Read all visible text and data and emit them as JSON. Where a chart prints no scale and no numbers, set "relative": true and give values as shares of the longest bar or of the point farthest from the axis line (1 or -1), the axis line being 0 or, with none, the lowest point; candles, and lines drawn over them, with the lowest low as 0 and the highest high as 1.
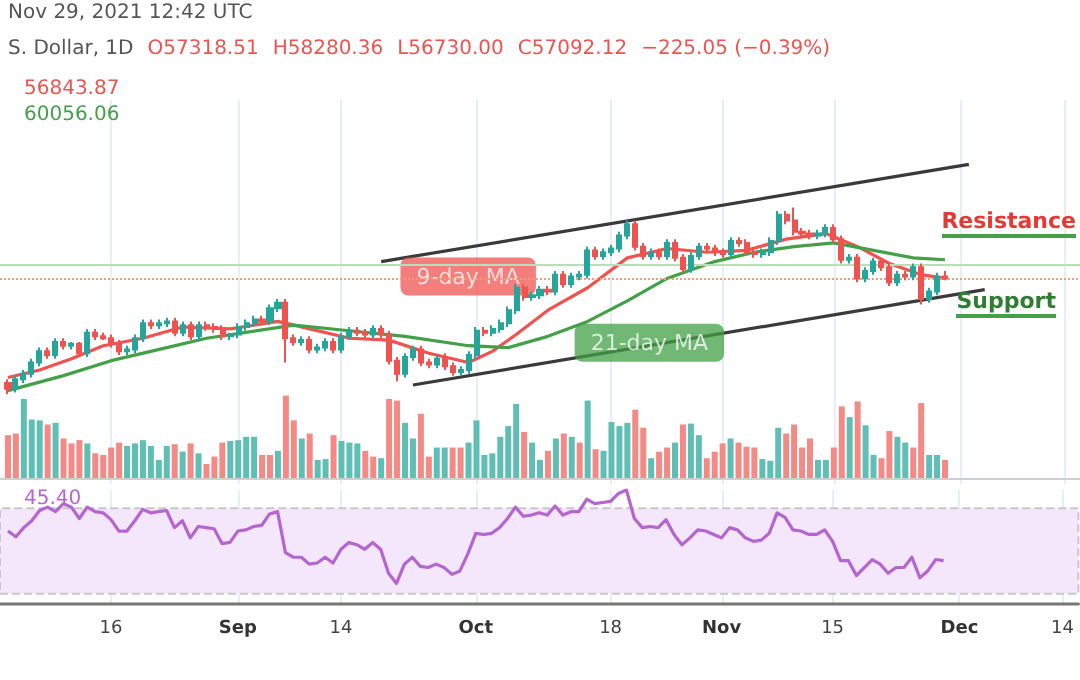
{
  "chart_data": [
    {
      "type": "candlestick",
      "relative": true,
      "tick_labels": false,
      "grid": "x",
      "xlim": [
        "--08-02",
        "--12-16"
      ],
      "xticks": [
        {
          "value": "--08-16",
          "label": "16"
        },
        {
          "value": "--09-01",
          "label": "Sep"
        },
        {
          "value": "--09-14",
          "label": "14"
        },
        {
          "value": "--10-01",
          "label": "Oct"
        },
        {
          "value": "--10-18",
          "label": "18"
        },
        {
          "value": "--11-01",
          "label": "Nov"
        },
        {
          "value": "--11-15",
          "label": "15"
        },
        {
          "value": "--12-01",
          "label": "Dec"
        },
        {
          "value": "--12-14",
          "label": "14"
        }
      ],
      "x": [
        "--08-03",
        "--08-04",
        "--08-05",
        "--08-06",
        "--08-07",
        "--08-08",
        "--08-09",
        "--08-10",
        "--08-11",
        "--08-12",
        "--08-13",
        "--08-14",
        "--08-15",
        "--08-16",
        "--08-17",
        "--08-18",
        "--08-19",
        "--08-20",
        "--08-21",
        "--08-22",
        "--08-23",
        "--08-24",
        "--08-25",
        "--08-26",
        "--08-27",
        "--08-28",
        "--08-29",
        "--08-30",
        "--08-31",
        "--09-01",
        "--09-02",
        "--09-03",
        "--09-04",
        "--09-05",
        "--09-06",
        "--09-07",
        "--09-08",
        "--09-09",
        "--09-10",
        "--09-11",
        "--09-12",
        "--09-13",
        "--09-14",
        "--09-15",
        "--09-16",
        "--09-17",
        "--09-18",
        "--09-19",
        "--09-20",
        "--09-21",
        "--09-22",
        "--09-23",
        "--09-24",
        "--09-25",
        "--09-26",
        "--09-27",
        "--09-28",
        "--09-29",
        "--09-30",
        "--10-01",
        "--10-02",
        "--10-03",
        "--10-04",
        "--10-05",
        "--10-06",
        "--10-07",
        "--10-08",
        "--10-09",
        "--10-10",
        "--10-11",
        "--10-12",
        "--10-13",
        "--10-14",
        "--10-15",
        "--10-16",
        "--10-17",
        "--10-18",
        "--10-19",
        "--10-20",
        "--10-21",
        "--10-22",
        "--10-23",
        "--10-24",
        "--10-25",
        "--10-26",
        "--10-27",
        "--10-28",
        "--10-29",
        "--10-30",
        "--10-31",
        "--11-01",
        "--11-02",
        "--11-03",
        "--11-04",
        "--11-05",
        "--11-06",
        "--11-07",
        "--11-08",
        "--11-09",
        "--11-10",
        "--11-11",
        "--11-12",
        "--11-13",
        "--11-14",
        "--11-15",
        "--11-16",
        "--11-17",
        "--11-18",
        "--11-19",
        "--11-20",
        "--11-21",
        "--11-22",
        "--11-23",
        "--11-24",
        "--11-25",
        "--11-26",
        "--11-27",
        "--11-28",
        "--11-29"
      ],
      "ohlc": [
        [
          0.06,
          0.08,
          0,
          0.03
        ],
        [
          0.03,
          0.1,
          0.01,
          0.08
        ],
        [
          0.08,
          0.13,
          0.06,
          0.11
        ],
        [
          0.11,
          0.19,
          0.09,
          0.17
        ],
        [
          0.17,
          0.25,
          0.15,
          0.23
        ],
        [
          0.23,
          0.25,
          0.19,
          0.21
        ],
        [
          0.21,
          0.3,
          0.19,
          0.28
        ],
        [
          0.28,
          0.3,
          0.24,
          0.26
        ],
        [
          0.26,
          0.28,
          0.24,
          0.27
        ],
        [
          0.27,
          0.28,
          0.2,
          0.22
        ],
        [
          0.22,
          0.35,
          0.2,
          0.33
        ],
        [
          0.33,
          0.35,
          0.29,
          0.31
        ],
        [
          0.31,
          0.33,
          0.29,
          0.3
        ],
        [
          0.3,
          0.32,
          0.25,
          0.27
        ],
        [
          0.27,
          0.29,
          0.21,
          0.23
        ],
        [
          0.23,
          0.26,
          0.21,
          0.24
        ],
        [
          0.24,
          0.32,
          0.22,
          0.3
        ],
        [
          0.3,
          0.4,
          0.28,
          0.38
        ],
        [
          0.38,
          0.4,
          0.35,
          0.37
        ],
        [
          0.37,
          0.4,
          0.35,
          0.38
        ],
        [
          0.38,
          0.41,
          0.36,
          0.39
        ],
        [
          0.39,
          0.41,
          0.31,
          0.33
        ],
        [
          0.33,
          0.39,
          0.31,
          0.37
        ],
        [
          0.37,
          0.39,
          0.29,
          0.31
        ],
        [
          0.31,
          0.39,
          0.29,
          0.37
        ],
        [
          0.37,
          0.39,
          0.34,
          0.36
        ],
        [
          0.36,
          0.38,
          0.33,
          0.35
        ],
        [
          0.35,
          0.37,
          0.29,
          0.31
        ],
        [
          0.31,
          0.33,
          0.29,
          0.32
        ],
        [
          0.32,
          0.38,
          0.3,
          0.36
        ],
        [
          0.36,
          0.4,
          0.34,
          0.38
        ],
        [
          0.38,
          0.42,
          0.36,
          0.4
        ],
        [
          0.4,
          0.42,
          0.37,
          0.39
        ],
        [
          0.39,
          0.48,
          0.37,
          0.46
        ],
        [
          0.46,
          0.51,
          0.44,
          0.49
        ],
        [
          0.49,
          0.51,
          0.17,
          0.3
        ],
        [
          0.3,
          0.32,
          0.26,
          0.28
        ],
        [
          0.28,
          0.31,
          0.26,
          0.29
        ],
        [
          0.29,
          0.31,
          0.22,
          0.24
        ],
        [
          0.24,
          0.27,
          0.22,
          0.25
        ],
        [
          0.25,
          0.3,
          0.23,
          0.28
        ],
        [
          0.28,
          0.3,
          0.22,
          0.24
        ],
        [
          0.24,
          0.33,
          0.22,
          0.31
        ],
        [
          0.31,
          0.36,
          0.29,
          0.34
        ],
        [
          0.34,
          0.36,
          0.31,
          0.33
        ],
        [
          0.33,
          0.35,
          0.3,
          0.32
        ],
        [
          0.32,
          0.37,
          0.3,
          0.35
        ],
        [
          0.35,
          0.37,
          0.3,
          0.32
        ],
        [
          0.32,
          0.34,
          0.16,
          0.18
        ],
        [
          0.18,
          0.2,
          0.07,
          0.11
        ],
        [
          0.11,
          0.22,
          0.09,
          0.2
        ],
        [
          0.2,
          0.26,
          0.18,
          0.24
        ],
        [
          0.24,
          0.26,
          0.15,
          0.17
        ],
        [
          0.17,
          0.19,
          0.14,
          0.16
        ],
        [
          0.16,
          0.21,
          0.14,
          0.19
        ],
        [
          0.19,
          0.22,
          0.13,
          0.15
        ],
        [
          0.15,
          0.17,
          0.1,
          0.12
        ],
        [
          0.12,
          0.15,
          0.1,
          0.13
        ],
        [
          0.13,
          0.23,
          0.11,
          0.21
        ],
        [
          0.21,
          0.36,
          0.19,
          0.34
        ],
        [
          0.34,
          0.36,
          0.31,
          0.33
        ],
        [
          0.33,
          0.37,
          0.31,
          0.35
        ],
        [
          0.35,
          0.4,
          0.33,
          0.38
        ],
        [
          0.38,
          0.47,
          0.36,
          0.45
        ],
        [
          0.45,
          0.59,
          0.43,
          0.57
        ],
        [
          0.57,
          0.59,
          0.5,
          0.52
        ],
        [
          0.52,
          0.55,
          0.5,
          0.53
        ],
        [
          0.53,
          0.58,
          0.51,
          0.56
        ],
        [
          0.56,
          0.58,
          0.53,
          0.55
        ],
        [
          0.55,
          0.66,
          0.53,
          0.64
        ],
        [
          0.64,
          0.66,
          0.57,
          0.59
        ],
        [
          0.59,
          0.65,
          0.57,
          0.63
        ],
        [
          0.63,
          0.66,
          0.61,
          0.64
        ],
        [
          0.64,
          0.79,
          0.62,
          0.77
        ],
        [
          0.77,
          0.79,
          0.72,
          0.74
        ],
        [
          0.74,
          0.78,
          0.72,
          0.76
        ],
        [
          0.76,
          0.8,
          0.74,
          0.78
        ],
        [
          0.78,
          0.87,
          0.76,
          0.85
        ],
        [
          0.85,
          0.93,
          0.83,
          0.91
        ],
        [
          0.91,
          0.93,
          0.77,
          0.79
        ],
        [
          0.79,
          0.81,
          0.72,
          0.74
        ],
        [
          0.74,
          0.78,
          0.72,
          0.76
        ],
        [
          0.76,
          0.78,
          0.72,
          0.74
        ],
        [
          0.74,
          0.83,
          0.72,
          0.81
        ],
        [
          0.81,
          0.83,
          0.71,
          0.73
        ],
        [
          0.73,
          0.75,
          0.65,
          0.67
        ],
        [
          0.67,
          0.76,
          0.65,
          0.74
        ],
        [
          0.74,
          0.81,
          0.72,
          0.79
        ],
        [
          0.79,
          0.81,
          0.76,
          0.78
        ],
        [
          0.78,
          0.8,
          0.74,
          0.76
        ],
        [
          0.76,
          0.78,
          0.73,
          0.75
        ],
        [
          0.75,
          0.84,
          0.73,
          0.82
        ],
        [
          0.82,
          0.84,
          0.79,
          0.81
        ],
        [
          0.81,
          0.83,
          0.74,
          0.76
        ],
        [
          0.76,
          0.78,
          0.73,
          0.75
        ],
        [
          0.75,
          0.78,
          0.73,
          0.76
        ],
        [
          0.76,
          0.84,
          0.74,
          0.82
        ],
        [
          0.82,
          0.98,
          0.8,
          0.96
        ],
        [
          0.96,
          0.98,
          0.91,
          0.93
        ],
        [
          0.93,
          1,
          0.85,
          0.87
        ],
        [
          0.87,
          0.89,
          0.84,
          0.86
        ],
        [
          0.86,
          0.88,
          0.83,
          0.85
        ],
        [
          0.85,
          0.88,
          0.83,
          0.86
        ],
        [
          0.86,
          0.91,
          0.84,
          0.89
        ],
        [
          0.89,
          0.91,
          0.81,
          0.83
        ],
        [
          0.83,
          0.85,
          0.7,
          0.72
        ],
        [
          0.72,
          0.75,
          0.7,
          0.73
        ],
        [
          0.73,
          0.75,
          0.6,
          0.62
        ],
        [
          0.62,
          0.68,
          0.6,
          0.66
        ],
        [
          0.66,
          0.73,
          0.64,
          0.71
        ],
        [
          0.71,
          0.73,
          0.66,
          0.68
        ],
        [
          0.68,
          0.7,
          0.58,
          0.6
        ],
        [
          0.6,
          0.66,
          0.58,
          0.64
        ],
        [
          0.64,
          0.66,
          0.61,
          0.63
        ],
        [
          0.63,
          0.7,
          0.61,
          0.68
        ],
        [
          0.68,
          0.7,
          0.48,
          0.51
        ],
        [
          0.51,
          0.57,
          0.49,
          0.55
        ],
        [
          0.55,
          0.65,
          0.53,
          0.63
        ],
        [
          0.63,
          0.66,
          0.61,
          0.62
        ]
      ],
      "series": [
        {
          "type": "line",
          "name": "9-day MA",
          "color": "#f0534f",
          "x": [
            "--08-03",
            "--08-07",
            "--08-11",
            "--08-15",
            "--08-20",
            "--08-25",
            "--08-31",
            "--09-06",
            "--09-10",
            "--09-15",
            "--09-20",
            "--09-25",
            "--09-30",
            "--10-03",
            "--10-06",
            "--10-10",
            "--10-15",
            "--10-20",
            "--10-25",
            "--10-30",
            "--11-04",
            "--11-09",
            "--11-14",
            "--11-18",
            "--11-22",
            "--11-26",
            "--11-29"
          ],
          "values": [
            0.09,
            0.13,
            0.19,
            0.26,
            0.3,
            0.36,
            0.35,
            0.39,
            0.35,
            0.3,
            0.29,
            0.22,
            0.17,
            0.23,
            0.32,
            0.45,
            0.57,
            0.73,
            0.78,
            0.76,
            0.77,
            0.83,
            0.86,
            0.79,
            0.7,
            0.64,
            0.62
          ]
        },
        {
          "type": "line",
          "name": "21-day MA",
          "color": "#43a047",
          "x": [
            "--08-03",
            "--08-10",
            "--08-16",
            "--08-23",
            "--08-28",
            "--09-08",
            "--09-15",
            "--09-22",
            "--09-30",
            "--10-05",
            "--10-10",
            "--10-15",
            "--10-20",
            "--10-25",
            "--10-31",
            "--11-05",
            "--11-10",
            "--11-15",
            "--11-20",
            "--11-25",
            "--11-29"
          ],
          "values": [
            0.02,
            0.1,
            0.18,
            0.25,
            0.3,
            0.37,
            0.34,
            0.31,
            0.26,
            0.25,
            0.31,
            0.39,
            0.5,
            0.62,
            0.71,
            0.76,
            0.79,
            0.81,
            0.77,
            0.73,
            0.72
          ]
        },
        {
          "type": "line",
          "color": "#3a3a3a",
          "x": [
            "--09-19",
            "--12-02"
          ],
          "values": [
            0.71,
            1.23
          ]
        },
        {
          "type": "line",
          "color": "#3a3a3a",
          "x": [
            "--09-23",
            "--12-04"
          ],
          "values": [
            0.05,
            0.56
          ]
        }
      ],
      "ref_lines": [
        {
          "axis": "y",
          "value": 0.69,
          "color": "#b9dfb9",
          "line_style": "solid"
        },
        {
          "axis": "y",
          "value": 0.62,
          "color": "#f0a070",
          "line_style": "dotted"
        }
      ],
      "annotations": [
        "Nov 29, 2021 12:42 UTC",
        "S. Dollar, 1D",
        "O57318.51",
        "H58280.36",
        "L56730.00",
        "C57092.12",
        "−225.05 (−0.39%)",
        "56843.87",
        "60056.06",
        "Resistance",
        "Support"
      ]
    },
    {
      "type": "bar",
      "relative": true,
      "tick_labels": false,
      "xlim": [
        "--08-02",
        "--12-16"
      ],
      "x": [
        "--08-03",
        "--08-04",
        "--08-05",
        "--08-06",
        "--08-07",
        "--08-08",
        "--08-09",
        "--08-10",
        "--08-11",
        "--08-12",
        "--08-13",
        "--08-14",
        "--08-15",
        "--08-16",
        "--08-17",
        "--08-18",
        "--08-19",
        "--08-20",
        "--08-21",
        "--08-22",
        "--08-23",
        "--08-24",
        "--08-25",
        "--08-26",
        "--08-27",
        "--08-28",
        "--08-29",
        "--08-30",
        "--08-31",
        "--09-01",
        "--09-02",
        "--09-03",
        "--09-04",
        "--09-05",
        "--09-06",
        "--09-07",
        "--09-08",
        "--09-09",
        "--09-10",
        "--09-11",
        "--09-12",
        "--09-13",
        "--09-14",
        "--09-15",
        "--09-16",
        "--09-17",
        "--09-18",
        "--09-19",
        "--09-20",
        "--09-21",
        "--09-22",
        "--09-23",
        "--09-24",
        "--09-25",
        "--09-26",
        "--09-27",
        "--09-28",
        "--09-29",
        "--09-30",
        "--10-01",
        "--10-02",
        "--10-03",
        "--10-04",
        "--10-05",
        "--10-06",
        "--10-07",
        "--10-08",
        "--10-09",
        "--10-10",
        "--10-11",
        "--10-12",
        "--10-13",
        "--10-14",
        "--10-15",
        "--10-16",
        "--10-17",
        "--10-18",
        "--10-19",
        "--10-20",
        "--10-21",
        "--10-22",
        "--10-23",
        "--10-24",
        "--10-25",
        "--10-26",
        "--10-27",
        "--10-28",
        "--10-29",
        "--10-30",
        "--10-31",
        "--11-01",
        "--11-02",
        "--11-03",
        "--11-04",
        "--11-05",
        "--11-06",
        "--11-07",
        "--11-08",
        "--11-09",
        "--11-10",
        "--11-11",
        "--11-12",
        "--11-13",
        "--11-14",
        "--11-15",
        "--11-16",
        "--11-17",
        "--11-18",
        "--11-19",
        "--11-20",
        "--11-21",
        "--11-22",
        "--11-23",
        "--11-24",
        "--11-25",
        "--11-26",
        "--11-27",
        "--11-28",
        "--11-29"
      ],
      "values": [
        0.52,
        0.54,
        0.96,
        0.71,
        0.7,
        0.65,
        0.67,
        0.48,
        0.42,
        0.46,
        0.42,
        0.3,
        0.28,
        0.37,
        0.43,
        0.39,
        0.42,
        0.46,
        0.39,
        0.22,
        0.39,
        0.41,
        0.32,
        0.42,
        0.3,
        0.17,
        0.26,
        0.43,
        0.45,
        0.46,
        0.5,
        0.5,
        0.28,
        0.28,
        0.33,
        1,
        0.7,
        0.48,
        0.54,
        0.22,
        0.23,
        0.52,
        0.45,
        0.43,
        0.42,
        0.33,
        0.26,
        0.24,
        0.96,
        0.94,
        0.67,
        0.48,
        0.78,
        0.26,
        0.37,
        0.37,
        0.37,
        0.37,
        0.43,
        0.7,
        0.28,
        0.3,
        0.5,
        0.63,
        0.9,
        0.56,
        0.43,
        0.22,
        0.33,
        0.48,
        0.54,
        0.5,
        0.43,
        0.94,
        0.35,
        0.33,
        0.68,
        0.63,
        0.67,
        0.83,
        0.61,
        0.24,
        0.32,
        0.37,
        0.43,
        0.65,
        0.66,
        0.52,
        0.24,
        0.32,
        0.42,
        0.48,
        0.43,
        0.38,
        0.37,
        0.23,
        0.21,
        0.61,
        0.54,
        0.65,
        0.37,
        0.48,
        0.22,
        0.22,
        0.37,
        0.87,
        0.74,
        0.93,
        0.64,
        0.28,
        0.24,
        0.57,
        0.5,
        0.43,
        0.37,
        0.91,
        0.28,
        0.28,
        0.22
      ],
      "colors": [
        "#f38a86",
        "#f38a86",
        "#5fbfb4",
        "#5fbfb4",
        "#5fbfb4",
        "#f38a86",
        "#5fbfb4",
        "#f38a86",
        "#f38a86",
        "#f38a86",
        "#5fbfb4",
        "#f38a86",
        "#f38a86",
        "#f38a86",
        "#f38a86",
        "#5fbfb4",
        "#5fbfb4",
        "#5fbfb4",
        "#5fbfb4",
        "#5fbfb4",
        "#5fbfb4",
        "#f38a86",
        "#5fbfb4",
        "#f38a86",
        "#5fbfb4",
        "#f38a86",
        "#f38a86",
        "#f38a86",
        "#5fbfb4",
        "#5fbfb4",
        "#5fbfb4",
        "#5fbfb4",
        "#f38a86",
        "#f38a86",
        "#5fbfb4",
        "#f38a86",
        "#f38a86",
        "#5fbfb4",
        "#f38a86",
        "#5fbfb4",
        "#5fbfb4",
        "#f38a86",
        "#5fbfb4",
        "#5fbfb4",
        "#5fbfb4",
        "#f38a86",
        "#f38a86",
        "#5fbfb4",
        "#f38a86",
        "#f38a86",
        "#5fbfb4",
        "#5fbfb4",
        "#f38a86",
        "#f38a86",
        "#5fbfb4",
        "#5fbfb4",
        "#f38a86",
        "#f38a86",
        "#5fbfb4",
        "#5fbfb4",
        "#5fbfb4",
        "#5fbfb4",
        "#5fbfb4",
        "#5fbfb4",
        "#5fbfb4",
        "#f38a86",
        "#5fbfb4",
        "#5fbfb4",
        "#f38a86",
        "#5fbfb4",
        "#f38a86",
        "#5fbfb4",
        "#f38a86",
        "#5fbfb4",
        "#f38a86",
        "#5fbfb4",
        "#5fbfb4",
        "#5fbfb4",
        "#5fbfb4",
        "#f38a86",
        "#f38a86",
        "#5fbfb4",
        "#f38a86",
        "#f38a86",
        "#5fbfb4",
        "#f38a86",
        "#5fbfb4",
        "#5fbfb4",
        "#f38a86",
        "#f38a86",
        "#f38a86",
        "#5fbfb4",
        "#f38a86",
        "#f38a86",
        "#f38a86",
        "#5fbfb4",
        "#5fbfb4",
        "#5fbfb4",
        "#f38a86",
        "#f38a86",
        "#f38a86",
        "#f38a86",
        "#5fbfb4",
        "#5fbfb4",
        "#f38a86",
        "#f38a86",
        "#5fbfb4",
        "#f38a86",
        "#5fbfb4",
        "#5fbfb4",
        "#f38a86",
        "#f38a86",
        "#5fbfb4",
        "#5fbfb4",
        "#f38a86",
        "#f38a86",
        "#5fbfb4",
        "#5fbfb4",
        "#f38a86"
      ]
    },
    {
      "type": "line",
      "relative": true,
      "tick_labels": "x",
      "grid": "x",
      "color": "#b565d0",
      "xlim": [
        "--08-02",
        "--12-16"
      ],
      "xticks": [
        {
          "value": "--08-16",
          "label": "16"
        },
        {
          "value": "--09-01",
          "label": "Sep"
        },
        {
          "value": "--09-14",
          "label": "14"
        },
        {
          "value": "--10-01",
          "label": "Oct"
        },
        {
          "value": "--10-18",
          "label": "18"
        },
        {
          "value": "--11-01",
          "label": "Nov"
        },
        {
          "value": "--11-15",
          "label": "15"
        },
        {
          "value": "--12-01",
          "label": "Dec"
        },
        {
          "value": "--12-14",
          "label": "14"
        }
      ],
      "x": [
        "--08-03",
        "--08-04",
        "--08-05",
        "--08-06",
        "--08-07",
        "--08-08",
        "--08-09",
        "--08-10",
        "--08-11",
        "--08-12",
        "--08-13",
        "--08-14",
        "--08-15",
        "--08-16",
        "--08-17",
        "--08-18",
        "--08-19",
        "--08-20",
        "--08-21",
        "--08-22",
        "--08-23",
        "--08-24",
        "--08-25",
        "--08-26",
        "--08-27",
        "--08-28",
        "--08-29",
        "--08-30",
        "--08-31",
        "--09-01",
        "--09-02",
        "--09-03",
        "--09-04",
        "--09-05",
        "--09-06",
        "--09-07",
        "--09-08",
        "--09-09",
        "--09-10",
        "--09-11",
        "--09-12",
        "--09-13",
        "--09-14",
        "--09-15",
        "--09-16",
        "--09-17",
        "--09-18",
        "--09-19",
        "--09-20",
        "--09-21",
        "--09-22",
        "--09-23",
        "--09-24",
        "--09-25",
        "--09-26",
        "--09-27",
        "--09-28",
        "--09-29",
        "--09-30",
        "--10-01",
        "--10-02",
        "--10-03",
        "--10-04",
        "--10-05",
        "--10-06",
        "--10-07",
        "--10-08",
        "--10-09",
        "--10-10",
        "--10-11",
        "--10-12",
        "--10-13",
        "--10-14",
        "--10-15",
        "--10-16",
        "--10-17",
        "--10-18",
        "--10-19",
        "--10-20",
        "--10-21",
        "--10-22",
        "--10-23",
        "--10-24",
        "--10-25",
        "--10-26",
        "--10-27",
        "--10-28",
        "--10-29",
        "--10-30",
        "--10-31",
        "--11-01",
        "--11-02",
        "--11-03",
        "--11-04",
        "--11-05",
        "--11-06",
        "--11-07",
        "--11-08",
        "--11-09",
        "--11-10",
        "--11-11",
        "--11-12",
        "--11-13",
        "--11-14",
        "--11-15",
        "--11-16",
        "--11-17",
        "--11-18",
        "--11-19",
        "--11-20",
        "--11-21",
        "--11-22",
        "--11-23",
        "--11-24",
        "--11-25",
        "--11-26",
        "--11-27",
        "--11-28",
        "--11-29"
      ],
      "values": [
        0.64,
        0.59,
        0.67,
        0.73,
        0.82,
        0.85,
        0.81,
        0.88,
        0.85,
        0.75,
        0.85,
        0.81,
        0.8,
        0.74,
        0.64,
        0.64,
        0.73,
        0.83,
        0.8,
        0.81,
        0.82,
        0.67,
        0.73,
        0.58,
        0.68,
        0.67,
        0.66,
        0.53,
        0.54,
        0.64,
        0.65,
        0.68,
        0.69,
        0.79,
        0.81,
        0.45,
        0.41,
        0.41,
        0.35,
        0.36,
        0.41,
        0.36,
        0.48,
        0.54,
        0.52,
        0.48,
        0.54,
        0.48,
        0.27,
        0.18,
        0.35,
        0.41,
        0.33,
        0.32,
        0.35,
        0.32,
        0.26,
        0.29,
        0.44,
        0.62,
        0.61,
        0.62,
        0.67,
        0.75,
        0.85,
        0.77,
        0.78,
        0.8,
        0.78,
        0.86,
        0.78,
        0.81,
        0.81,
        0.92,
        0.88,
        0.89,
        0.9,
        0.97,
        1,
        0.75,
        0.67,
        0.68,
        0.67,
        0.74,
        0.61,
        0.52,
        0.58,
        0.65,
        0.64,
        0.61,
        0.58,
        0.67,
        0.65,
        0.58,
        0.55,
        0.56,
        0.62,
        0.8,
        0.76,
        0.65,
        0.64,
        0.61,
        0.61,
        0.65,
        0.55,
        0.38,
        0.38,
        0.25,
        0.32,
        0.39,
        0.35,
        0.27,
        0.32,
        0.32,
        0.41,
        0.23,
        0.29,
        0.39,
        0.38
      ],
      "bands": [
        {
          "axis": "y",
          "from": 0.09,
          "to": 0.84,
          "color": "#f4e6fb"
        }
      ],
      "annotations": [
        "45.40"
      ]
    }
  ]
}
